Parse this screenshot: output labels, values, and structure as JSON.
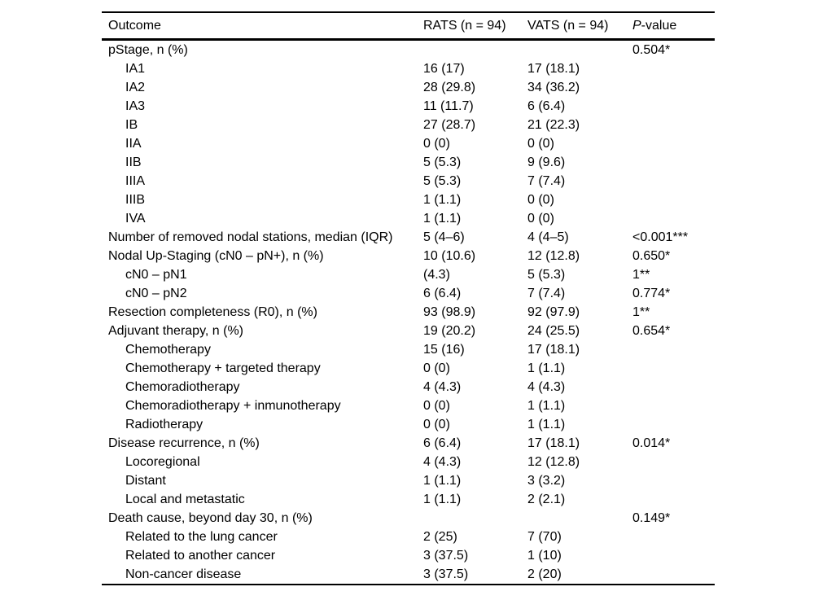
{
  "colors": {
    "background": "#ffffff",
    "text": "#000000",
    "rule": "#000000"
  },
  "table": {
    "columns": {
      "outcome": "Outcome",
      "rats": "RATS (n = 94)",
      "vats": "VATS (n = 94)",
      "pvalue_italic": "P",
      "pvalue_rest": "-value"
    },
    "rows": [
      {
        "label": "pStage, n (%)",
        "indent": 0,
        "rats": "",
        "vats": "",
        "p": "0.504*"
      },
      {
        "label": "IA1",
        "indent": 1,
        "rats": "16 (17)",
        "vats": "17 (18.1)",
        "p": ""
      },
      {
        "label": "IA2",
        "indent": 1,
        "rats": "28 (29.8)",
        "vats": "34 (36.2)",
        "p": ""
      },
      {
        "label": "IA3",
        "indent": 1,
        "rats": "11 (11.7)",
        "vats": "6 (6.4)",
        "p": ""
      },
      {
        "label": "IB",
        "indent": 1,
        "rats": "27 (28.7)",
        "vats": "21 (22.3)",
        "p": ""
      },
      {
        "label": "IIA",
        "indent": 1,
        "rats": "0 (0)",
        "vats": "0 (0)",
        "p": ""
      },
      {
        "label": "IIB",
        "indent": 1,
        "rats": "5 (5.3)",
        "vats": "9 (9.6)",
        "p": ""
      },
      {
        "label": "IIIA",
        "indent": 1,
        "rats": "5 (5.3)",
        "vats": "7 (7.4)",
        "p": ""
      },
      {
        "label": "IIIB",
        "indent": 1,
        "rats": "1 (1.1)",
        "vats": "0 (0)",
        "p": ""
      },
      {
        "label": "IVA",
        "indent": 1,
        "rats": "1 (1.1)",
        "vats": "0 (0)",
        "p": ""
      },
      {
        "label": "Number of removed nodal stations, median (IQR)",
        "indent": 0,
        "rats": "5 (4–6)",
        "vats": "4 (4–5)",
        "p": "<0.001***"
      },
      {
        "label": "Nodal Up-Staging (cN0 – pN+), n (%)",
        "indent": 0,
        "rats": "10 (10.6)",
        "vats": "12 (12.8)",
        "p": "0.650*"
      },
      {
        "label": "cN0 – pN1",
        "indent": 1,
        "rats": "(4.3)",
        "vats": "5 (5.3)",
        "p": "1**"
      },
      {
        "label": "cN0 – pN2",
        "indent": 1,
        "rats": "6 (6.4)",
        "vats": "7 (7.4)",
        "p": "0.774*"
      },
      {
        "label": "Resection completeness (R0), n (%)",
        "indent": 0,
        "rats": "93 (98.9)",
        "vats": "92 (97.9)",
        "p": "1**"
      },
      {
        "label": "Adjuvant therapy, n (%)",
        "indent": 0,
        "rats": "19 (20.2)",
        "vats": "24 (25.5)",
        "p": "0.654*"
      },
      {
        "label": "Chemotherapy",
        "indent": 1,
        "rats": "15 (16)",
        "vats": "17 (18.1)",
        "p": ""
      },
      {
        "label": "Chemotherapy + targeted therapy",
        "indent": 1,
        "rats": "0 (0)",
        "vats": "1 (1.1)",
        "p": ""
      },
      {
        "label": "Chemoradiotherapy",
        "indent": 1,
        "rats": "4 (4.3)",
        "vats": "4 (4.3)",
        "p": ""
      },
      {
        "label": "Chemoradiotherapy + inmunotherapy",
        "indent": 1,
        "rats": "0 (0)",
        "vats": "1 (1.1)",
        "p": ""
      },
      {
        "label": "Radiotherapy",
        "indent": 1,
        "rats": "0 (0)",
        "vats": "1 (1.1)",
        "p": ""
      },
      {
        "label": "Disease recurrence, n (%)",
        "indent": 0,
        "rats": "6 (6.4)",
        "vats": "17 (18.1)",
        "p": "0.014*"
      },
      {
        "label": "Locoregional",
        "indent": 1,
        "rats": "4 (4.3)",
        "vats": "12 (12.8)",
        "p": ""
      },
      {
        "label": "Distant",
        "indent": 1,
        "rats": "1 (1.1)",
        "vats": "3 (3.2)",
        "p": ""
      },
      {
        "label": "Local and metastatic",
        "indent": 1,
        "rats": "1 (1.1)",
        "vats": "2 (2.1)",
        "p": ""
      },
      {
        "label": "Death cause, beyond day 30, n (%)",
        "indent": 0,
        "rats": "",
        "vats": "",
        "p": "0.149*"
      },
      {
        "label": "Related to the lung cancer",
        "indent": 1,
        "rats": "2 (25)",
        "vats": "7 (70)",
        "p": ""
      },
      {
        "label": "Related to another cancer",
        "indent": 1,
        "rats": "3 (37.5)",
        "vats": "1 (10)",
        "p": ""
      },
      {
        "label": "Non-cancer disease",
        "indent": 1,
        "rats": "3 (37.5)",
        "vats": "2 (20)",
        "p": ""
      }
    ]
  }
}
